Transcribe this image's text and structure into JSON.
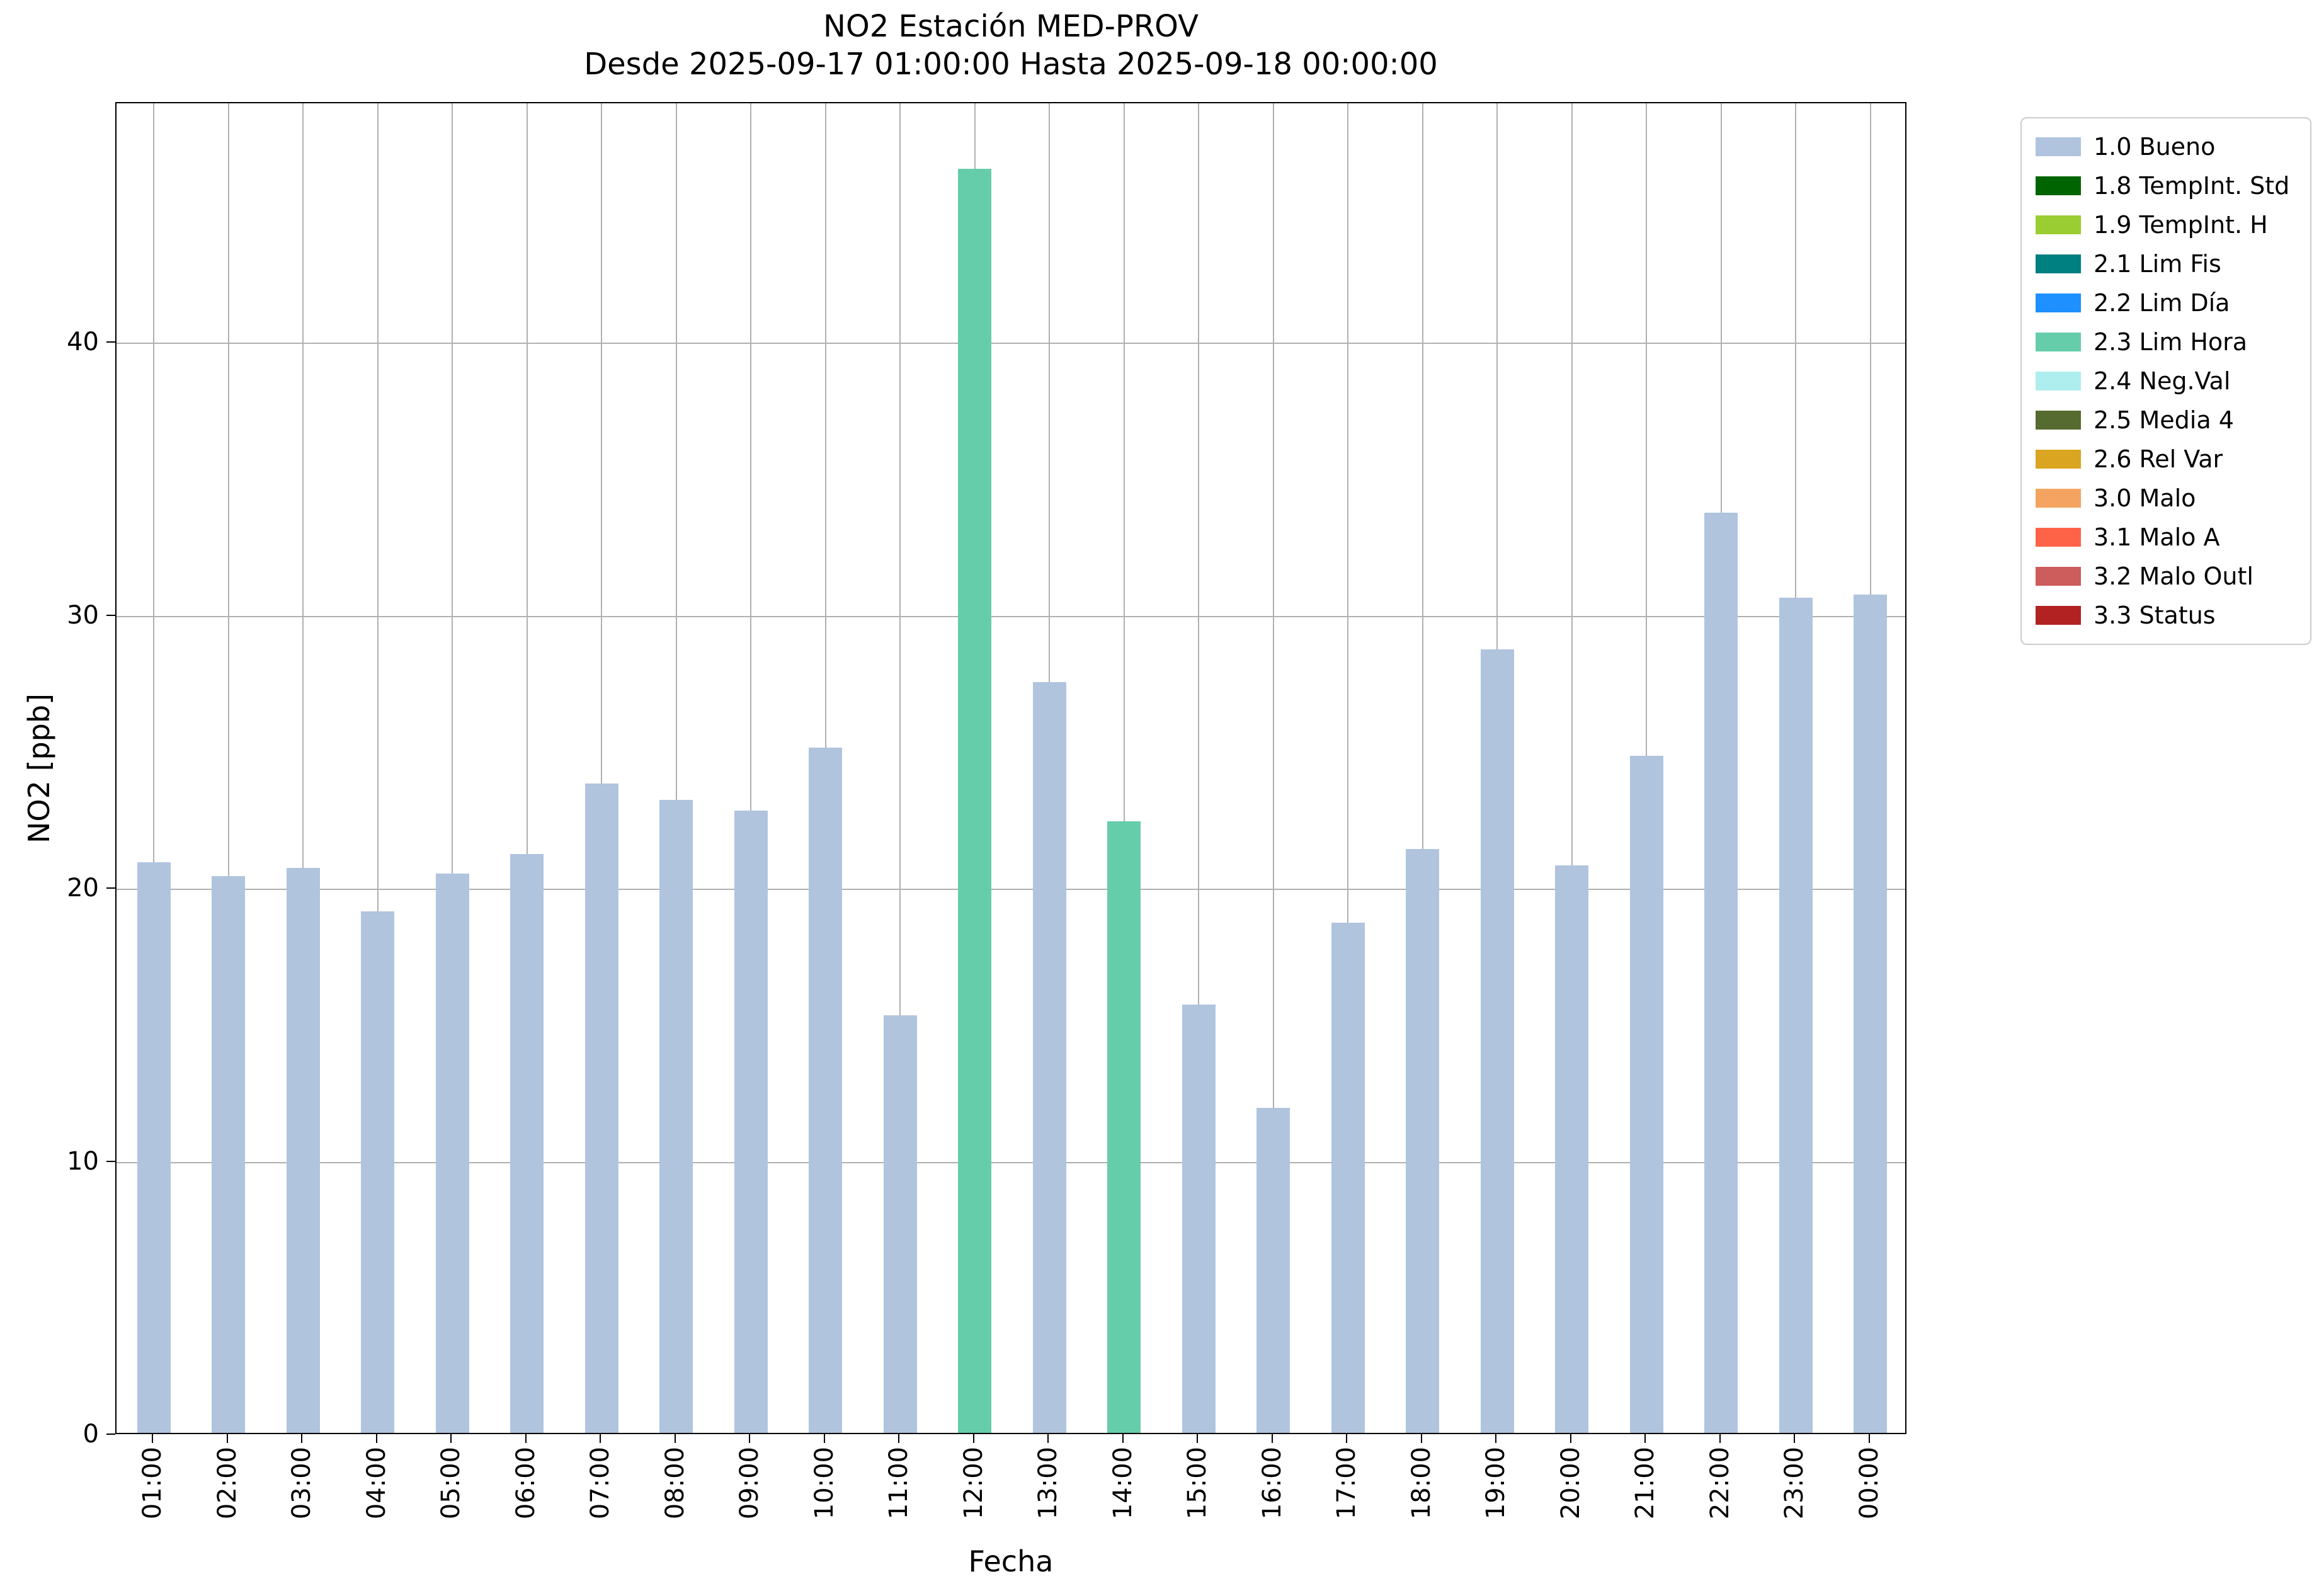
{
  "chart_data": {
    "type": "bar",
    "title": "NO2 Estación MED-PROV",
    "subtitle": "Desde 2025-09-17 01:00:00 Hasta 2025-09-18 00:00:00",
    "xlabel": "Fecha",
    "ylabel": "NO2 [ppb]",
    "ylim": [
      0,
      48.8
    ],
    "yticks": [
      0,
      10,
      20,
      30,
      40
    ],
    "grid": true,
    "legend_position": "outside-right",
    "categories": [
      "01:00",
      "02:00",
      "03:00",
      "04:00",
      "05:00",
      "06:00",
      "07:00",
      "08:00",
      "09:00",
      "10:00",
      "11:00",
      "12:00",
      "13:00",
      "14:00",
      "15:00",
      "16:00",
      "17:00",
      "18:00",
      "19:00",
      "20:00",
      "21:00",
      "22:00",
      "23:00",
      "00:00"
    ],
    "values": [
      20.9,
      20.4,
      20.7,
      19.1,
      20.5,
      21.2,
      23.8,
      23.2,
      22.8,
      25.1,
      15.3,
      46.3,
      27.5,
      22.4,
      15.7,
      11.9,
      18.7,
      21.4,
      28.7,
      20.8,
      24.8,
      33.7,
      30.6,
      30.7
    ],
    "statuses": [
      "1.0 Bueno",
      "1.0 Bueno",
      "1.0 Bueno",
      "1.0 Bueno",
      "1.0 Bueno",
      "1.0 Bueno",
      "1.0 Bueno",
      "1.0 Bueno",
      "1.0 Bueno",
      "1.0 Bueno",
      "1.0 Bueno",
      "2.3 Lim Hora",
      "1.0 Bueno",
      "2.3 Lim Hora",
      "1.0 Bueno",
      "1.0 Bueno",
      "1.0 Bueno",
      "1.0 Bueno",
      "1.0 Bueno",
      "1.0 Bueno",
      "1.0 Bueno",
      "1.0 Bueno",
      "1.0 Bueno",
      "1.0 Bueno"
    ],
    "default_bar_color": "#b0c4de",
    "status_colors": {
      "1.0 Bueno": "#b0c4de",
      "2.3 Lim Hora": "#66cdaa"
    },
    "legend": [
      {
        "label": "1.0 Bueno",
        "color": "#b0c4de"
      },
      {
        "label": "1.8 TempInt. Std",
        "color": "#006400"
      },
      {
        "label": "1.9 TempInt. H",
        "color": "#9acd32"
      },
      {
        "label": "2.1 Lim Fis",
        "color": "#008080"
      },
      {
        "label": "2.2 Lim Día",
        "color": "#1e90ff"
      },
      {
        "label": "2.3 Lim Hora",
        "color": "#66cdaa"
      },
      {
        "label": "2.4 Neg.Val",
        "color": "#afeeee"
      },
      {
        "label": "2.5 Media 4",
        "color": "#556b2f"
      },
      {
        "label": "2.6 Rel Var",
        "color": "#daa520"
      },
      {
        "label": "3.0 Malo",
        "color": "#f4a460"
      },
      {
        "label": "3.1 Malo A",
        "color": "#ff6347"
      },
      {
        "label": "3.2 Malo Outl",
        "color": "#cd5c5c"
      },
      {
        "label": "3.3 Status",
        "color": "#b22222"
      }
    ]
  }
}
